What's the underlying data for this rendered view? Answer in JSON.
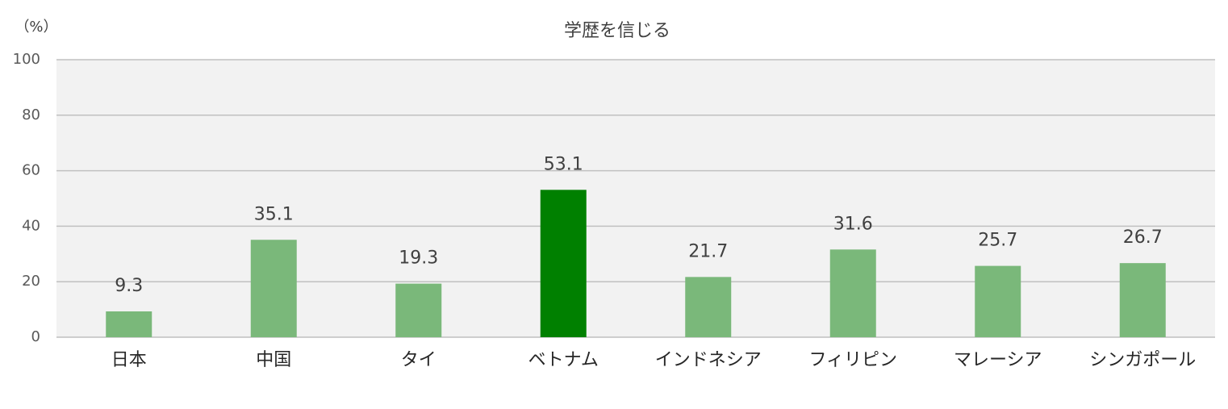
{
  "chart_data": {
    "type": "bar",
    "title": "学歴を信じる",
    "ylabel": "（%）",
    "categories": [
      "日本",
      "中国",
      "タイ",
      "ベトナム",
      "インドネシア",
      "フィリピン",
      "マレーシア",
      "シンガポール"
    ],
    "values": [
      9.3,
      35.1,
      19.3,
      53.1,
      21.7,
      31.6,
      25.7,
      26.7
    ],
    "colors": [
      "#7ab87a",
      "#7ab87a",
      "#7ab87a",
      "#008000",
      "#7ab87a",
      "#7ab87a",
      "#7ab87a",
      "#7ab87a"
    ],
    "ylim": [
      0,
      100
    ],
    "yticks": [
      0,
      20,
      40,
      60,
      80,
      100
    ],
    "grid": true
  }
}
